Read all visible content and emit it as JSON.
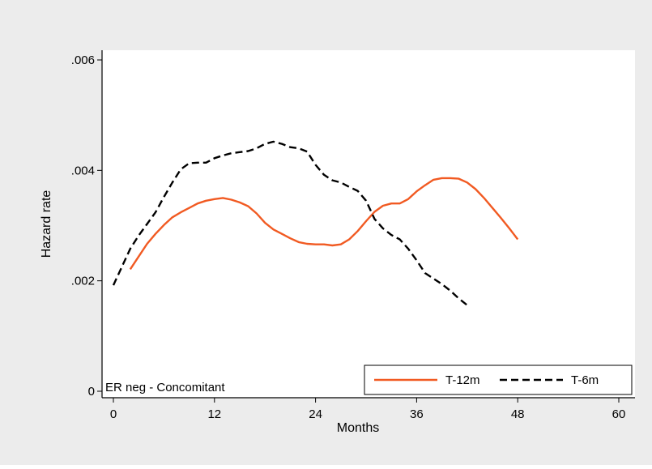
{
  "chart_data": {
    "type": "line",
    "xlabel": "Months",
    "ylabel": "Hazard rate",
    "xlim": [
      0,
      60
    ],
    "ylim": [
      0,
      0.006
    ],
    "x_ticks": [
      0,
      12,
      24,
      36,
      48,
      60
    ],
    "x_tick_labels": [
      "0",
      "12",
      "24",
      "36",
      "48",
      "60"
    ],
    "y_ticks": [
      0,
      0.002,
      0.004,
      0.006
    ],
    "y_tick_labels": [
      "0",
      ".002",
      ".004",
      ".006"
    ],
    "grid": false,
    "legend_position": "bottom-right",
    "annotation": "ER neg - Concomitant",
    "series": [
      {
        "name": "T-12m",
        "color": "#f15a22",
        "dash": "solid",
        "x": [
          2,
          3,
          4,
          5,
          6,
          7,
          8,
          9,
          10,
          11,
          12,
          13,
          14,
          15,
          16,
          17,
          18,
          19,
          20,
          21,
          22,
          23,
          24,
          25,
          26,
          27,
          28,
          29,
          30,
          31,
          32,
          33,
          34,
          35,
          36,
          37,
          38,
          39,
          40,
          41,
          42,
          43,
          44,
          45,
          46,
          47,
          48
        ],
        "y": [
          0.00221,
          0.00244,
          0.00267,
          0.00285,
          0.00301,
          0.00315,
          0.00324,
          0.00332,
          0.0034,
          0.00345,
          0.00348,
          0.0035,
          0.00347,
          0.00342,
          0.00335,
          0.00322,
          0.00305,
          0.00293,
          0.00285,
          0.00277,
          0.0027,
          0.00267,
          0.00266,
          0.00266,
          0.00264,
          0.00266,
          0.00275,
          0.0029,
          0.00308,
          0.00325,
          0.00336,
          0.0034,
          0.0034,
          0.00348,
          0.00362,
          0.00373,
          0.00383,
          0.00386,
          0.00386,
          0.00385,
          0.00378,
          0.00366,
          0.0035,
          0.00332,
          0.00314,
          0.00295,
          0.00275
        ]
      },
      {
        "name": "T-6m",
        "color": "#000000",
        "dash": "dashed",
        "x": [
          0,
          1,
          2,
          3,
          4,
          5,
          6,
          7,
          8,
          9,
          10,
          11,
          12,
          13,
          14,
          15,
          16,
          17,
          18,
          19,
          20,
          21,
          22,
          23,
          24,
          25,
          26,
          27,
          28,
          29,
          30,
          31,
          32,
          33,
          34,
          35,
          36,
          37,
          38,
          39,
          40,
          41,
          42
        ],
        "y": [
          0.00192,
          0.00225,
          0.00258,
          0.00282,
          0.00303,
          0.00324,
          0.00352,
          0.00378,
          0.00402,
          0.00413,
          0.00414,
          0.00414,
          0.00422,
          0.00427,
          0.00431,
          0.00433,
          0.00435,
          0.0044,
          0.00448,
          0.00452,
          0.00448,
          0.00442,
          0.0044,
          0.00434,
          0.0041,
          0.00392,
          0.00382,
          0.00378,
          0.0037,
          0.00363,
          0.00345,
          0.00312,
          0.00295,
          0.00283,
          0.00275,
          0.00258,
          0.00237,
          0.00214,
          0.00204,
          0.00194,
          0.00182,
          0.00168,
          0.00156
        ]
      }
    ]
  }
}
